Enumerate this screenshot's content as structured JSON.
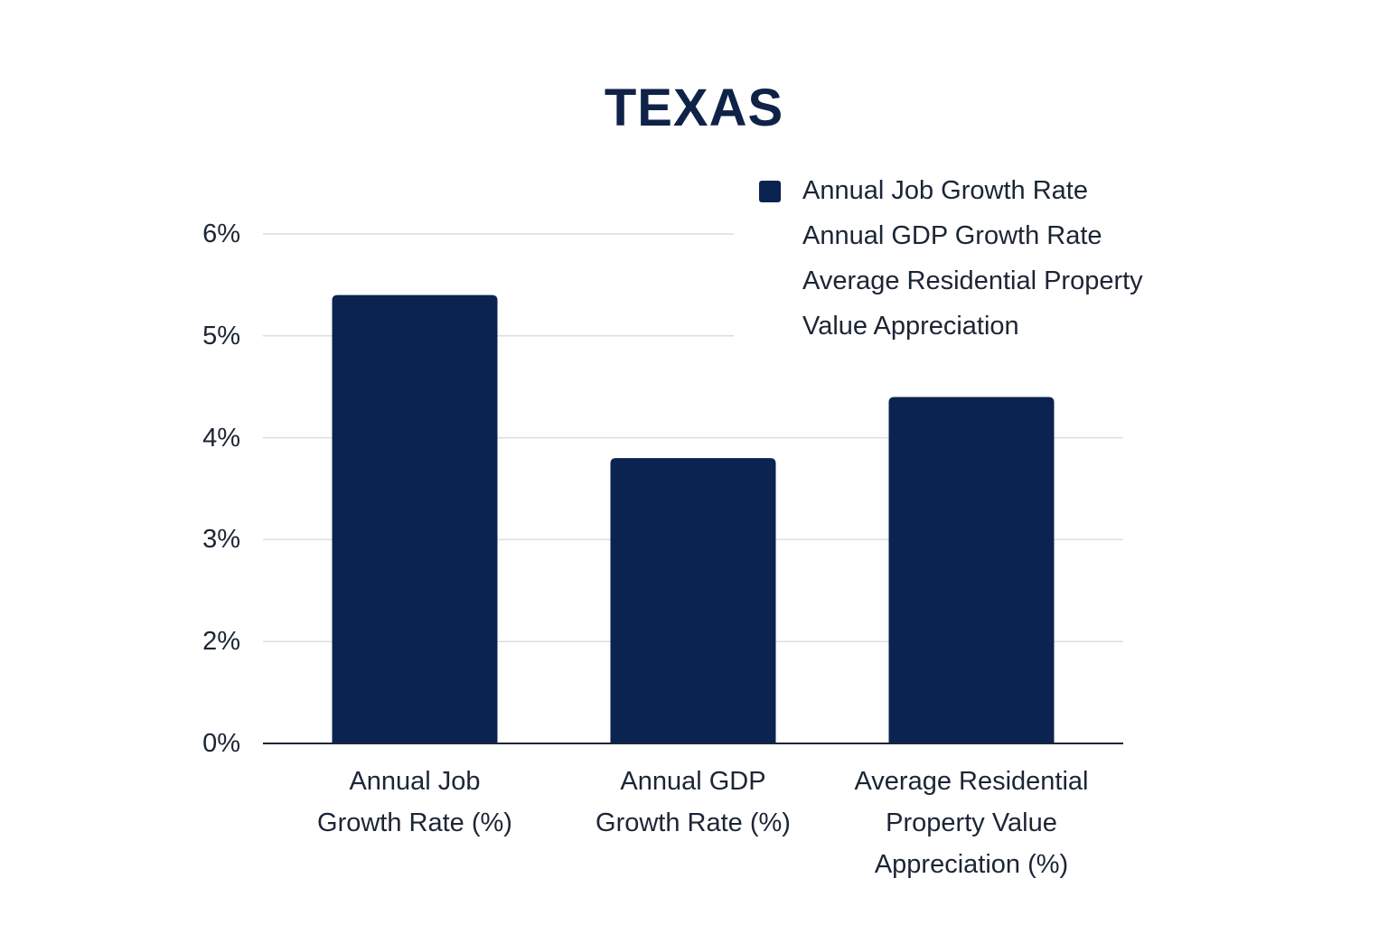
{
  "chart_data": {
    "type": "bar",
    "title": "TEXAS",
    "xlabel": "",
    "ylabel": "",
    "categories": [
      [
        "Annual Job",
        "Growth Rate (%)"
      ],
      [
        "Annual GDP",
        "Growth Rate (%)"
      ],
      [
        "Average Residential",
        "Property Value",
        "Appreciation (%)"
      ]
    ],
    "values": [
      5.4,
      3.8,
      4.4
    ],
    "unit": "%",
    "y_ticks": [
      "6%",
      "5%",
      "4%",
      "3%",
      "2%",
      "0%"
    ],
    "ylim": [
      1,
      6
    ],
    "grid": true,
    "legend": {
      "placement": "top-right",
      "entries": [
        {
          "label": "Annual Job Growth Rate",
          "has_swatch": true
        },
        {
          "label": "Annual GDP Growth Rate",
          "has_swatch": false
        },
        {
          "label": "Average Residential Property",
          "has_swatch": false
        },
        {
          "label": "Value Appreciation",
          "has_swatch": false
        }
      ]
    },
    "colors": {
      "bar": "#0b2350",
      "title": "#0f2247",
      "text": "#1c2535",
      "grid": "#dedede",
      "axis": "#1c2535"
    }
  }
}
